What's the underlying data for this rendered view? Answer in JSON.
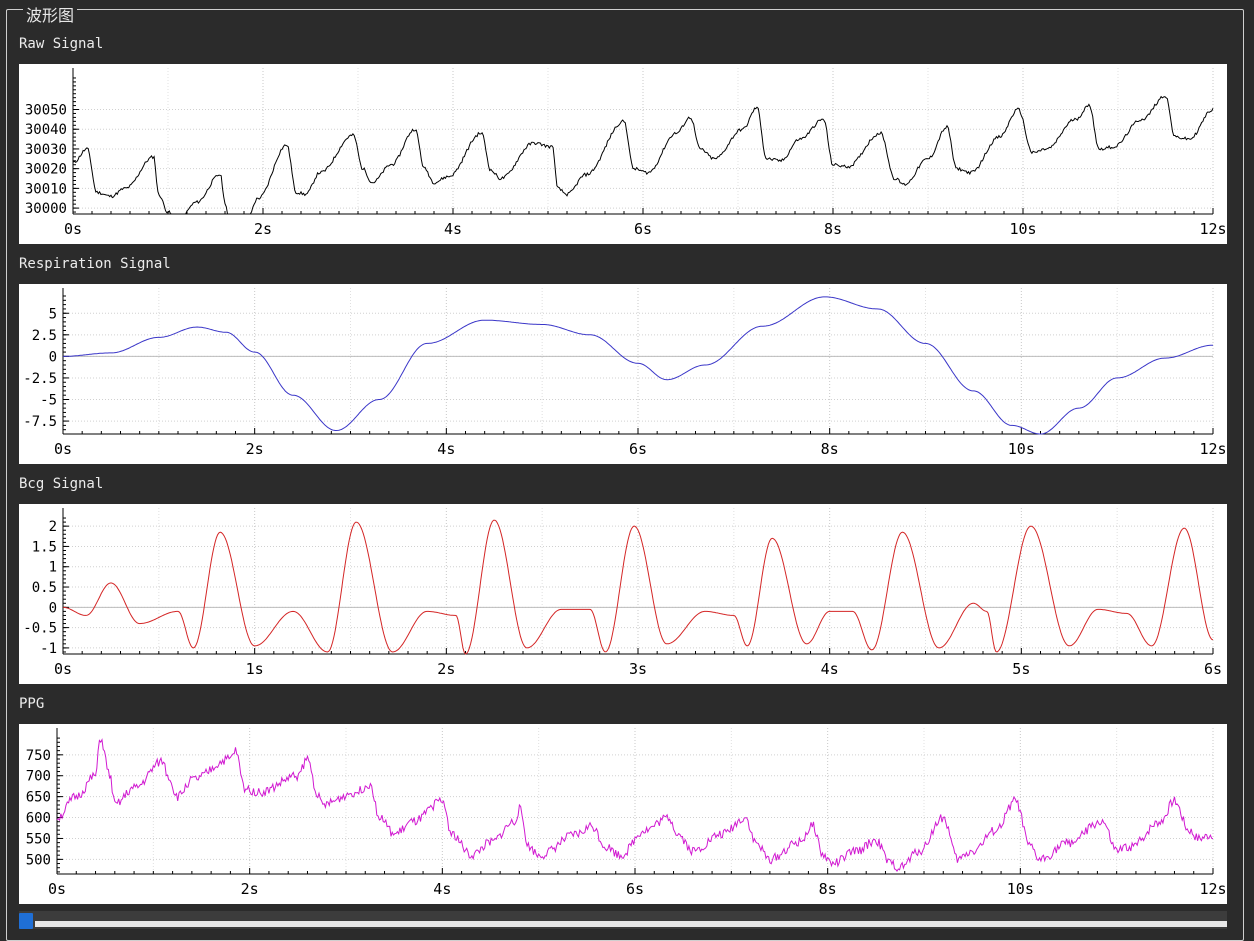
{
  "window": {
    "group_title": "波形图"
  },
  "charts": {
    "raw": {
      "title": "Raw Signal",
      "chart_data": {
        "type": "line",
        "color": "#000000",
        "xlim": [
          0,
          12
        ],
        "ylim": [
          29997,
          30067
        ],
        "x_ticks": [
          "0s",
          "2s",
          "4s",
          "6s",
          "8s",
          "10s",
          "12s"
        ],
        "y_ticks": [
          "30000",
          "30010",
          "30020",
          "30030",
          "30040",
          "30050"
        ],
        "y_tick_values": [
          30000,
          30010,
          30020,
          30030,
          30040,
          30050
        ],
        "keypoints": [
          [
            0,
            30023
          ],
          [
            0.15,
            30030
          ],
          [
            0.25,
            30008
          ],
          [
            0.4,
            30006
          ],
          [
            0.55,
            30010
          ],
          [
            0.85,
            30026
          ],
          [
            0.9,
            30007
          ],
          [
            1.0,
            29998
          ],
          [
            1.1,
            29993
          ],
          [
            1.3,
            30003
          ],
          [
            1.55,
            30017
          ],
          [
            1.6,
            30003
          ],
          [
            1.65,
            29990
          ],
          [
            1.8,
            29990
          ],
          [
            1.95,
            30005
          ],
          [
            2.25,
            30032
          ],
          [
            2.35,
            30008
          ],
          [
            2.45,
            30007
          ],
          [
            2.6,
            30018
          ],
          [
            2.95,
            30037
          ],
          [
            3.05,
            30020
          ],
          [
            3.15,
            30013
          ],
          [
            3.35,
            30022
          ],
          [
            3.6,
            30040
          ],
          [
            3.7,
            30020
          ],
          [
            3.8,
            30013
          ],
          [
            3.95,
            30016
          ],
          [
            4.3,
            30038
          ],
          [
            4.4,
            30019
          ],
          [
            4.5,
            30015
          ],
          [
            4.85,
            30033
          ],
          [
            5.05,
            30031
          ],
          [
            5.1,
            30010
          ],
          [
            5.2,
            30007
          ],
          [
            5.4,
            30017
          ],
          [
            5.8,
            30044
          ],
          [
            5.9,
            30020
          ],
          [
            6.05,
            30018
          ],
          [
            6.35,
            30038
          ],
          [
            6.5,
            30046
          ],
          [
            6.6,
            30030
          ],
          [
            6.75,
            30025
          ],
          [
            7.05,
            30040
          ],
          [
            7.2,
            30051
          ],
          [
            7.3,
            30025
          ],
          [
            7.45,
            30024
          ],
          [
            7.65,
            30035
          ],
          [
            7.9,
            30045
          ],
          [
            8.0,
            30022
          ],
          [
            8.15,
            30021
          ],
          [
            8.5,
            30038
          ],
          [
            8.65,
            30015
          ],
          [
            8.75,
            30012
          ],
          [
            9.0,
            30025
          ],
          [
            9.2,
            30041
          ],
          [
            9.3,
            30020
          ],
          [
            9.45,
            30018
          ],
          [
            9.75,
            30036
          ],
          [
            9.95,
            30050
          ],
          [
            10.1,
            30028
          ],
          [
            10.25,
            30030
          ],
          [
            10.55,
            30045
          ],
          [
            10.7,
            30052
          ],
          [
            10.8,
            30030
          ],
          [
            10.95,
            30031
          ],
          [
            11.25,
            30045
          ],
          [
            11.5,
            30057
          ],
          [
            11.6,
            30036
          ],
          [
            11.75,
            30035
          ],
          [
            12.0,
            30050
          ]
        ]
      }
    },
    "respiration": {
      "title": "Respiration Signal",
      "chart_data": {
        "type": "line",
        "color": "#3a36c8",
        "xlim": [
          0,
          12
        ],
        "ylim": [
          -9,
          7
        ],
        "x_ticks": [
          "0s",
          "2s",
          "4s",
          "6s",
          "8s",
          "10s",
          "12s"
        ],
        "y_ticks": [
          "5",
          "2.5",
          "0",
          "-2.5",
          "-5",
          "-7.5"
        ],
        "y_tick_values": [
          5,
          2.5,
          0,
          -2.5,
          -5,
          -7.5
        ],
        "keypoints": [
          [
            0,
            0
          ],
          [
            0.5,
            0.4
          ],
          [
            1.0,
            2.2
          ],
          [
            1.4,
            3.4
          ],
          [
            1.7,
            2.8
          ],
          [
            2.0,
            0.5
          ],
          [
            2.4,
            -4.5
          ],
          [
            2.85,
            -8.6
          ],
          [
            3.3,
            -5.0
          ],
          [
            3.8,
            1.5
          ],
          [
            4.4,
            4.2
          ],
          [
            5.0,
            3.7
          ],
          [
            5.5,
            2.5
          ],
          [
            6.0,
            -0.8
          ],
          [
            6.3,
            -2.7
          ],
          [
            6.7,
            -1.0
          ],
          [
            7.3,
            3.5
          ],
          [
            7.95,
            6.9
          ],
          [
            8.5,
            5.5
          ],
          [
            9.0,
            1.5
          ],
          [
            9.5,
            -4.0
          ],
          [
            9.9,
            -8.0
          ],
          [
            10.2,
            -9.0
          ],
          [
            10.6,
            -6.0
          ],
          [
            11.0,
            -2.5
          ],
          [
            11.5,
            -0.2
          ],
          [
            12.0,
            1.3
          ]
        ]
      }
    },
    "bcg": {
      "title": "Bcg Signal",
      "chart_data": {
        "type": "line",
        "color": "#d42626",
        "xlim": [
          0,
          6
        ],
        "ylim": [
          -1.15,
          2.25
        ],
        "x_ticks": [
          "0s",
          "1s",
          "2s",
          "3s",
          "4s",
          "5s",
          "6s"
        ],
        "y_ticks": [
          "2",
          "1.5",
          "1",
          "0.5",
          "0",
          "-0.5",
          "-1"
        ],
        "y_tick_values": [
          2,
          1.5,
          1,
          0.5,
          0,
          -0.5,
          -1
        ],
        "keypoints": [
          [
            0,
            0
          ],
          [
            0.12,
            -0.2
          ],
          [
            0.25,
            0.6
          ],
          [
            0.4,
            -0.4
          ],
          [
            0.6,
            -0.1
          ],
          [
            0.68,
            -1.0
          ],
          [
            0.82,
            1.85
          ],
          [
            1.0,
            -0.95
          ],
          [
            1.2,
            -0.1
          ],
          [
            1.38,
            -1.1
          ],
          [
            1.53,
            2.1
          ],
          [
            1.72,
            -1.1
          ],
          [
            1.9,
            -0.1
          ],
          [
            2.05,
            -0.2
          ],
          [
            2.1,
            -1.15
          ],
          [
            2.25,
            2.15
          ],
          [
            2.42,
            -1.0
          ],
          [
            2.6,
            -0.05
          ],
          [
            2.75,
            -0.05
          ],
          [
            2.83,
            -1.1
          ],
          [
            2.98,
            2.0
          ],
          [
            3.15,
            -0.9
          ],
          [
            3.35,
            -0.1
          ],
          [
            3.5,
            -0.2
          ],
          [
            3.57,
            -0.95
          ],
          [
            3.7,
            1.7
          ],
          [
            3.88,
            -0.9
          ],
          [
            4.0,
            -0.1
          ],
          [
            4.12,
            -0.1
          ],
          [
            4.22,
            -1.05
          ],
          [
            4.38,
            1.85
          ],
          [
            4.57,
            -1.0
          ],
          [
            4.75,
            0.1
          ],
          [
            4.82,
            -0.1
          ],
          [
            4.87,
            -1.1
          ],
          [
            5.05,
            2.0
          ],
          [
            5.25,
            -0.95
          ],
          [
            5.4,
            -0.05
          ],
          [
            5.55,
            -0.15
          ],
          [
            5.68,
            -0.95
          ],
          [
            5.85,
            1.95
          ],
          [
            6.0,
            -0.8
          ]
        ]
      }
    },
    "ppg": {
      "title": "PPG",
      "chart_data": {
        "type": "line",
        "color": "#d11ad1",
        "xlim": [
          0,
          12
        ],
        "ylim": [
          465,
          795
        ],
        "x_ticks": [
          "0s",
          "2s",
          "4s",
          "6s",
          "8s",
          "10s",
          "12s"
        ],
        "y_ticks": [
          "750",
          "700",
          "650",
          "600",
          "550",
          "500"
        ],
        "y_tick_values": [
          750,
          700,
          650,
          600,
          550,
          500
        ],
        "keypoints": [
          [
            0,
            600
          ],
          [
            0.2,
            650
          ],
          [
            0.4,
            700
          ],
          [
            0.45,
            790
          ],
          [
            0.55,
            700
          ],
          [
            0.6,
            630
          ],
          [
            0.8,
            670
          ],
          [
            1.1,
            735
          ],
          [
            1.15,
            700
          ],
          [
            1.25,
            650
          ],
          [
            1.4,
            690
          ],
          [
            1.8,
            740
          ],
          [
            1.85,
            760
          ],
          [
            1.95,
            670
          ],
          [
            2.1,
            660
          ],
          [
            2.5,
            700
          ],
          [
            2.6,
            740
          ],
          [
            2.7,
            660
          ],
          [
            2.75,
            630
          ],
          [
            3.1,
            660
          ],
          [
            3.25,
            680
          ],
          [
            3.35,
            600
          ],
          [
            3.5,
            560
          ],
          [
            3.7,
            590
          ],
          [
            4.0,
            640
          ],
          [
            4.1,
            560
          ],
          [
            4.3,
            510
          ],
          [
            4.5,
            540
          ],
          [
            4.75,
            590
          ],
          [
            4.8,
            620
          ],
          [
            4.9,
            530
          ],
          [
            5.0,
            510
          ],
          [
            5.4,
            560
          ],
          [
            5.55,
            580
          ],
          [
            5.7,
            530
          ],
          [
            5.85,
            510
          ],
          [
            6.1,
            570
          ],
          [
            6.35,
            600
          ],
          [
            6.45,
            560
          ],
          [
            6.6,
            520
          ],
          [
            6.9,
            560
          ],
          [
            7.15,
            600
          ],
          [
            7.25,
            540
          ],
          [
            7.4,
            500
          ],
          [
            7.7,
            540
          ],
          [
            7.85,
            580
          ],
          [
            7.95,
            510
          ],
          [
            8.05,
            490
          ],
          [
            8.3,
            520
          ],
          [
            8.5,
            545
          ],
          [
            8.65,
            490
          ],
          [
            8.75,
            480
          ],
          [
            8.95,
            520
          ],
          [
            9.2,
            600
          ],
          [
            9.35,
            500
          ],
          [
            9.5,
            520
          ],
          [
            9.75,
            570
          ],
          [
            9.95,
            640
          ],
          [
            10.1,
            530
          ],
          [
            10.2,
            500
          ],
          [
            10.5,
            540
          ],
          [
            10.85,
            590
          ],
          [
            11.0,
            520
          ],
          [
            11.15,
            530
          ],
          [
            11.45,
            590
          ],
          [
            11.6,
            640
          ],
          [
            11.75,
            570
          ],
          [
            11.85,
            550
          ],
          [
            12.0,
            560
          ]
        ]
      }
    }
  }
}
